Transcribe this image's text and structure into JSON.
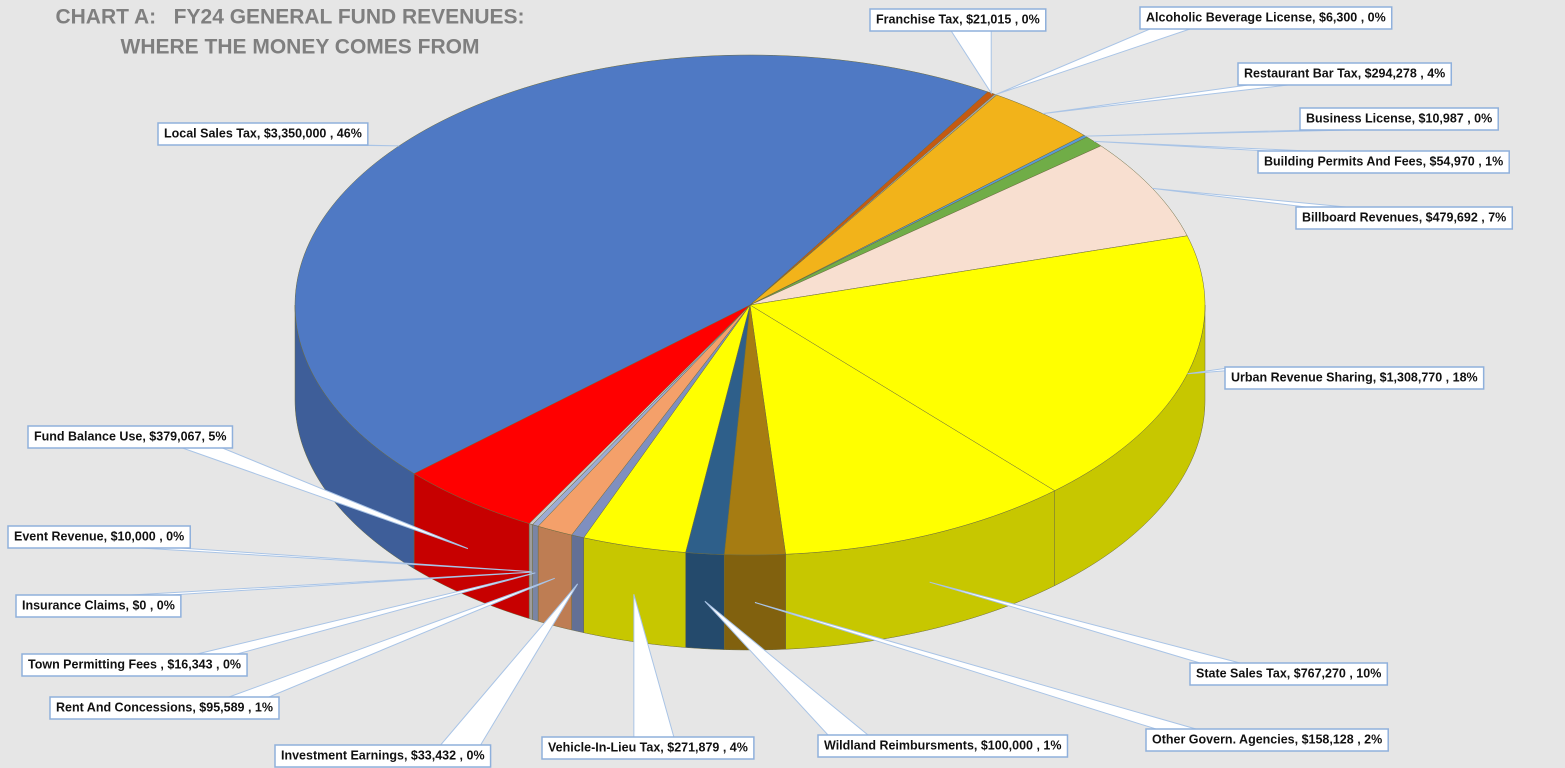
{
  "chart_data": {
    "type": "pie",
    "title": "CHART A:   FY24 GENERAL FUND REVENUES:",
    "subtitle": "WHERE THE MONEY COMES FROM",
    "labels": [
      "Franchise Tax, $21,015 , 0%",
      "Alcoholic Beverage License, $6,300 , 0%",
      "Restaurant Bar Tax, $294,278 , 4%",
      "Business License, $10,987 , 0%",
      "Building Permits And Fees, $54,970 , 1%",
      "Billboard Revenues, $479,692 , 7%",
      "Urban Revenue Sharing, $1,308,770 , 18%",
      "State Sales Tax, $767,270 , 10%",
      "Other Govern. Agencies, $158,128 , 2%",
      "Wildland Reimbursments, $100,000 , 1%",
      "Vehicle-In-Lieu Tax, $271,879 , 4%",
      "Investment Earnings, $33,432 , 0%",
      "Rent And Concessions, $95,589 , 1%",
      "Town Permitting Fees , $16,343 , 0%",
      "Insurance Claims, $0 , 0%",
      "Event Revenue, $10,000 , 0%",
      "Fund Balance Use, $379,067, 5%",
      "Local Sales Tax, $3,350,000 , 46%"
    ],
    "values": [
      21015,
      6300,
      294278,
      10987,
      54970,
      479692,
      1308770,
      767270,
      158128,
      100000,
      271879,
      33432,
      95589,
      16343,
      0,
      10000,
      379067,
      3350000
    ],
    "colors": [
      "#c55a11",
      "#a5a5a5",
      "#f2b31a",
      "#5b9bd5",
      "#70ad47",
      "#f8dfd0",
      "#ffff00",
      "#ffff00",
      "#a67c12",
      "#2e5f8a",
      "#ffff00",
      "#7f8fbf",
      "#f4a06a",
      "#9dabd4",
      "#8fa8dc",
      "#c9c9c9",
      "#ff0000",
      "#4f79c4"
    ]
  }
}
